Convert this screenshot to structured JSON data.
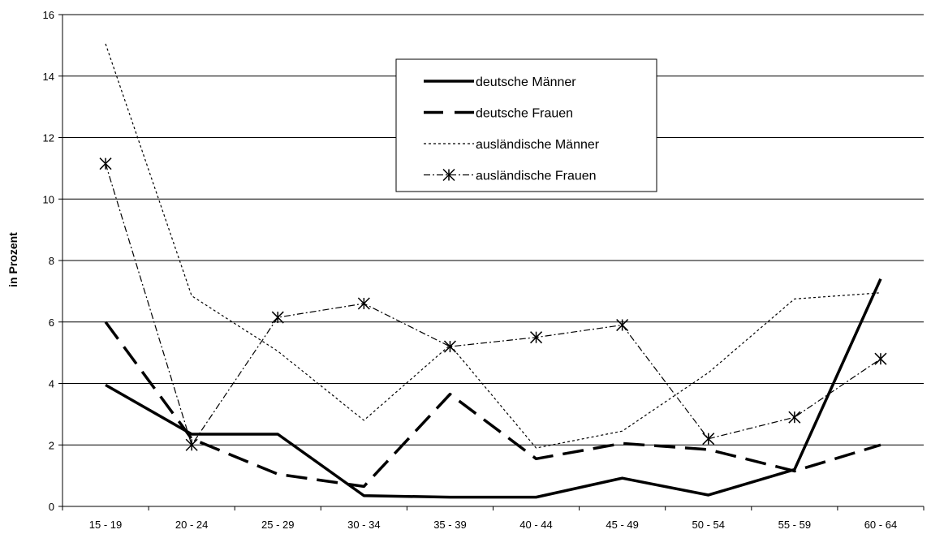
{
  "chart_data": {
    "type": "line",
    "title": "",
    "xlabel": "",
    "ylabel": "in Prozent",
    "ylim": [
      0,
      16
    ],
    "yticks": [
      0,
      2,
      4,
      6,
      8,
      10,
      12,
      14,
      16
    ],
    "grid": "horizontal",
    "legend_position": "top-center",
    "categories": [
      "15 - 19",
      "20 - 24",
      "25 - 29",
      "30 - 34",
      "35 - 39",
      "40 - 44",
      "45 - 49",
      "50 - 54",
      "55 - 59",
      "60 - 64"
    ],
    "series": [
      {
        "name": "deutsche Männer",
        "style": "solid",
        "color": "#000000",
        "values": [
          3.95,
          2.35,
          2.35,
          0.35,
          0.3,
          0.3,
          0.92,
          0.37,
          1.2,
          7.4
        ]
      },
      {
        "name": "deutsche Frauen",
        "style": "dashed",
        "color": "#000000",
        "values": [
          6.0,
          2.2,
          1.05,
          0.65,
          3.65,
          1.55,
          2.05,
          1.85,
          1.15,
          2.0
        ]
      },
      {
        "name": "ausländische Männer",
        "style": "dotted",
        "color": "#000000",
        "values": [
          15.05,
          6.85,
          5.05,
          2.8,
          5.25,
          1.9,
          2.45,
          4.35,
          6.75,
          6.95
        ]
      },
      {
        "name": "ausländische Frauen",
        "style": "dashdot-star",
        "color": "#000000",
        "values": [
          11.15,
          2.0,
          6.15,
          6.6,
          5.2,
          5.5,
          5.9,
          2.2,
          2.9,
          4.8
        ]
      }
    ]
  }
}
